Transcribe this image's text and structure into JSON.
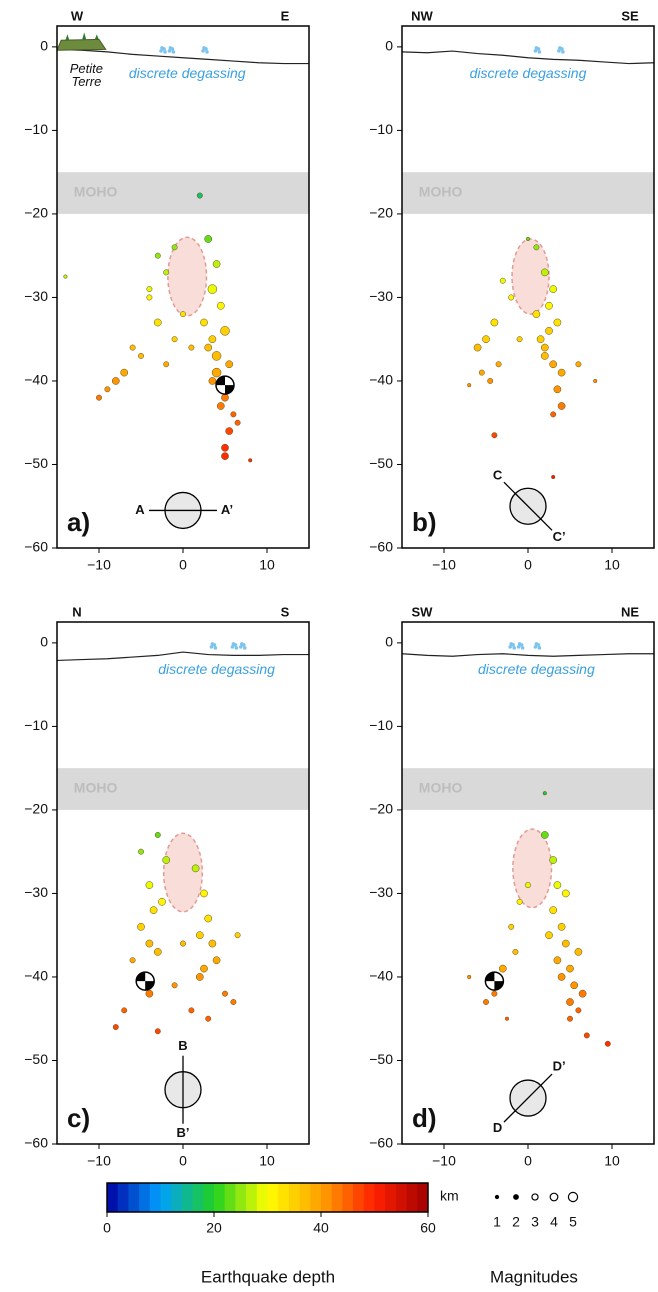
{
  "chart_data": [
    {
      "type": "scatter",
      "panel_label": "a)",
      "top_labels": [
        "W",
        "E"
      ],
      "annotation": "discrete degassing",
      "island_label": [
        "Petite",
        "Terre"
      ],
      "moho_label": "MOHO",
      "moho": [
        -15,
        -20
      ],
      "profile_start": "A",
      "profile_end": "A’",
      "profile_symbol": {
        "x": 0,
        "y": -55.5,
        "angle": 0
      },
      "xlim": [
        -15,
        15
      ],
      "ylim": [
        -60,
        2.5
      ],
      "xticks": [
        {
          "value": -10,
          "label": "−10"
        },
        0,
        10
      ],
      "yticks": [
        0,
        {
          "value": -10,
          "label": "−10"
        },
        {
          "value": -20,
          "label": "−20"
        },
        {
          "value": -30,
          "label": "−30"
        },
        {
          "value": -40,
          "label": "−40"
        },
        {
          "value": -50,
          "label": "−50"
        },
        {
          "value": -60,
          "label": "−60"
        }
      ],
      "reservoir": {
        "cx": 0.5,
        "cy": -27.5,
        "rx": 2.3,
        "ry": 4.7
      },
      "topography": {
        "x": [
          -15,
          -12,
          -9,
          -6,
          -3,
          0,
          3,
          6,
          9,
          12,
          15
        ],
        "y": [
          -0.3,
          -0.4,
          -0.6,
          -0.9,
          -1.1,
          -1.3,
          -1.5,
          -1.7,
          -1.9,
          -2.0,
          -2.0
        ]
      },
      "focal": {
        "x": 5,
        "y": -40.5
      },
      "points": {
        "x": [
          3,
          4,
          3.5,
          4.5,
          2.5,
          5,
          3,
          4,
          5.5,
          4,
          3.5,
          5,
          4.5,
          6,
          5.5,
          5,
          6.5,
          5,
          -2,
          -4,
          -3,
          -1,
          -6,
          -8,
          -9,
          -10,
          -7,
          -5,
          -3,
          -2,
          0,
          -1,
          -4,
          2,
          8,
          -14,
          1,
          3.5
        ],
        "y": [
          -23,
          -26,
          -29,
          -31,
          -33,
          -34,
          -36,
          -37,
          -38,
          -39,
          -35,
          -42,
          -43,
          -44,
          -46,
          -48,
          -45,
          -49,
          -27,
          -29,
          -33,
          -35,
          -36,
          -40,
          -41,
          -42,
          -39,
          -37,
          -25,
          -38,
          -32,
          -24,
          -30,
          -17.8,
          -49.5,
          -27.5,
          -36,
          -40
        ],
        "magnitude": [
          3,
          3,
          4,
          3,
          3,
          4,
          3,
          4,
          3,
          4,
          3,
          3,
          3,
          2,
          3,
          3,
          2,
          3,
          2,
          2,
          3,
          2,
          2,
          3,
          2,
          2,
          3,
          2,
          2,
          2,
          2,
          2,
          2,
          2,
          1,
          1,
          2,
          3
        ]
      }
    },
    {
      "type": "scatter",
      "panel_label": "b)",
      "top_labels": [
        "NW",
        "SE"
      ],
      "annotation": "discrete degassing",
      "moho_label": "MOHO",
      "moho": [
        -15,
        -20
      ],
      "profile_start": "C",
      "profile_end": "C’",
      "profile_symbol": {
        "x": 0,
        "y": -55,
        "angle": 45
      },
      "xlim": [
        -15,
        15
      ],
      "ylim": [
        -60,
        2.5
      ],
      "xticks": [
        {
          "value": -10,
          "label": "−10"
        },
        0,
        10
      ],
      "yticks": [
        0,
        {
          "value": -10,
          "label": "−10"
        },
        {
          "value": -20,
          "label": "−20"
        },
        {
          "value": -30,
          "label": "−30"
        },
        {
          "value": -40,
          "label": "−40"
        },
        {
          "value": -50,
          "label": "−50"
        },
        {
          "value": -60,
          "label": "−60"
        }
      ],
      "reservoir": {
        "cx": 0.3,
        "cy": -27.5,
        "rx": 2.2,
        "ry": 4.5
      },
      "topography": {
        "x": [
          -15,
          -12,
          -9,
          -6,
          -3,
          0,
          3,
          6,
          9,
          12,
          15
        ],
        "y": [
          -0.6,
          -0.7,
          -0.5,
          -0.8,
          -1.0,
          -1.3,
          -1.5,
          -1.6,
          -1.8,
          -2.0,
          -1.9
        ]
      },
      "points": {
        "x": [
          1,
          2,
          3,
          2.5,
          3.5,
          1.5,
          2,
          3,
          4,
          3.5,
          4,
          3,
          2,
          1,
          -3,
          -4,
          -5,
          -6,
          -3.5,
          -2,
          -1,
          -4.5,
          -5.5,
          0,
          -4,
          3,
          6,
          8,
          -7,
          2.5
        ],
        "y": [
          -24,
          -27,
          -29,
          -31,
          -33,
          -35,
          -37,
          -38,
          -39,
          -41,
          -43,
          -44,
          -36,
          -32,
          -28,
          -33,
          -35,
          -36,
          -38,
          -30,
          -35,
          -40,
          -39,
          -23,
          -46.5,
          -51.5,
          -38,
          -40,
          -40.5,
          -34
        ],
        "magnitude": [
          2,
          3,
          3,
          3,
          3,
          3,
          3,
          3,
          3,
          3,
          3,
          2,
          3,
          3,
          2,
          3,
          3,
          3,
          2,
          2,
          2,
          2,
          2,
          1,
          2,
          1,
          2,
          1,
          1,
          3
        ]
      }
    },
    {
      "type": "scatter",
      "panel_label": "c)",
      "top_labels": [
        "N",
        "S"
      ],
      "annotation": "discrete degassing",
      "moho_label": "MOHO",
      "moho": [
        -15,
        -20
      ],
      "profile_start": "B",
      "profile_end": "B’",
      "profile_symbol": {
        "x": 0,
        "y": -53.5,
        "angle": 90
      },
      "xlim": [
        -15,
        15
      ],
      "ylim": [
        -60,
        2.5
      ],
      "xticks": [
        {
          "value": -10,
          "label": "−10"
        },
        0,
        10
      ],
      "yticks": [
        0,
        {
          "value": -10,
          "label": "−10"
        },
        {
          "value": -20,
          "label": "−20"
        },
        {
          "value": -30,
          "label": "−30"
        },
        {
          "value": -40,
          "label": "−40"
        },
        {
          "value": -50,
          "label": "−50"
        },
        {
          "value": -60,
          "label": "−60"
        }
      ],
      "reservoir": {
        "cx": 0,
        "cy": -27.5,
        "rx": 2.3,
        "ry": 4.7
      },
      "topography": {
        "x": [
          -15,
          -12,
          -9,
          -6,
          -3,
          0,
          3,
          6,
          9,
          12,
          15
        ],
        "y": [
          -2.1,
          -2.0,
          -1.9,
          -1.7,
          -1.5,
          -1.1,
          -1.4,
          -1.5,
          -1.5,
          -1.4,
          -1.4
        ]
      },
      "focal": {
        "x": -4.5,
        "y": -40.5
      },
      "points": {
        "x": [
          -3,
          -2,
          -4,
          -3.5,
          -5,
          -4,
          -3,
          -6,
          -5,
          -4,
          -2.5,
          -7,
          -8,
          -3,
          1.5,
          2.5,
          3,
          2,
          3.5,
          4,
          2.5,
          5,
          6,
          -1,
          0,
          -5,
          1,
          3,
          2,
          6.5
        ],
        "y": [
          -23,
          -26,
          -29,
          -32,
          -34,
          -36,
          -37,
          -38,
          -40,
          -42,
          -31,
          -44,
          -46,
          -46.5,
          -27,
          -30,
          -33,
          -35,
          -36,
          -38,
          -39,
          -42,
          -43,
          -41,
          -36,
          -25,
          -44,
          -45,
          -40,
          -35
        ],
        "magnitude": [
          2,
          3,
          3,
          3,
          3,
          3,
          3,
          2,
          3,
          3,
          3,
          2,
          2,
          2,
          3,
          3,
          3,
          3,
          3,
          3,
          3,
          2,
          2,
          2,
          2,
          2,
          2,
          2,
          3,
          2
        ]
      }
    },
    {
      "type": "scatter",
      "panel_label": "d)",
      "top_labels": [
        "SW",
        "NE"
      ],
      "annotation": "discrete degassing",
      "moho_label": "MOHO",
      "moho": [
        -15,
        -20
      ],
      "profile_start": "D",
      "profile_end": "D’",
      "profile_symbol": {
        "x": 0,
        "y": -54.5,
        "angle": -45
      },
      "xlim": [
        -15,
        15
      ],
      "ylim": [
        -60,
        2.5
      ],
      "xticks": [
        {
          "value": -10,
          "label": "−10"
        },
        0,
        10
      ],
      "yticks": [
        0,
        {
          "value": -10,
          "label": "−10"
        },
        {
          "value": -20,
          "label": "−20"
        },
        {
          "value": -30,
          "label": "−30"
        },
        {
          "value": -40,
          "label": "−40"
        },
        {
          "value": -50,
          "label": "−50"
        },
        {
          "value": -60,
          "label": "−60"
        }
      ],
      "reservoir": {
        "cx": 0.5,
        "cy": -27,
        "rx": 2.3,
        "ry": 4.7
      },
      "topography": {
        "x": [
          -15,
          -12,
          -9,
          -6,
          -3,
          0,
          3,
          6,
          9,
          12,
          15
        ],
        "y": [
          -1.3,
          -1.5,
          -1.6,
          -1.4,
          -1.3,
          -1.5,
          -1.6,
          -1.5,
          -1.4,
          -1.3,
          -1.3
        ]
      },
      "focal": {
        "x": -4,
        "y": -40.5
      },
      "points": {
        "x": [
          2,
          3,
          3.5,
          3,
          4,
          4.5,
          3.5,
          5,
          5.5,
          4,
          5,
          6,
          6.5,
          5,
          7,
          -1,
          -2,
          -1.5,
          -3,
          -4,
          -5,
          -7,
          -2.5,
          0,
          2,
          9.5,
          6,
          4.5,
          2.5,
          -3.5
        ],
        "y": [
          -23,
          -26,
          -29,
          -32,
          -34,
          -36,
          -38,
          -39,
          -41,
          -40,
          -43,
          -44,
          -42,
          -45,
          -47,
          -31,
          -34,
          -37,
          -39,
          -42,
          -43,
          -40,
          -45,
          -29,
          -18,
          -48,
          -37,
          -30,
          -35,
          -41
        ],
        "magnitude": [
          3,
          3,
          3,
          3,
          3,
          3,
          3,
          3,
          3,
          3,
          3,
          2,
          3,
          2,
          2,
          2,
          2,
          2,
          3,
          2,
          2,
          1,
          1,
          2,
          1,
          2,
          3,
          3,
          3,
          2
        ]
      }
    }
  ],
  "colorbar": {
    "label": "Earthquake depth",
    "unit": "km",
    "lim": [
      0,
      60
    ],
    "ticks": [
      0,
      20,
      40,
      60
    ],
    "colors": [
      "#0000a0",
      "#00a0ff",
      "#20d020",
      "#ffff00",
      "#ffa000",
      "#ff2000",
      "#a00000"
    ],
    "steps": 30
  },
  "size_legend": {
    "label": "Magnitudes",
    "values": [
      1,
      2,
      3,
      4,
      5
    ]
  }
}
